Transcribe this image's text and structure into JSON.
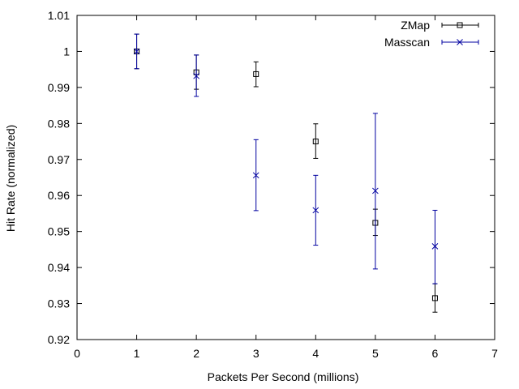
{
  "chart_data": {
    "type": "scatter",
    "xlabel": "Packets Per Second (millions)",
    "ylabel": "Hit Rate (normalized)",
    "xlim": [
      0,
      7
    ],
    "ylim": [
      0.92,
      1.01
    ],
    "xticks": [
      0,
      1,
      2,
      3,
      4,
      5,
      6,
      7
    ],
    "yticks": [
      0.92,
      0.93,
      0.94,
      0.95,
      0.96,
      0.97,
      0.98,
      0.99,
      1,
      1.01
    ],
    "xtick_labels": [
      "0",
      "1",
      "2",
      "3",
      "4",
      "5",
      "6",
      "7"
    ],
    "ytick_labels": [
      "0.92",
      "0.93",
      "0.94",
      "0.95",
      "0.96",
      "0.97",
      "0.98",
      "0.99",
      "1",
      "1.01"
    ],
    "grid": false,
    "legend_position": "top-right",
    "series": [
      {
        "name": "ZMap",
        "marker": "square",
        "color": "#000000",
        "points": [
          {
            "x": 1,
            "y": 1.0,
            "ylow": 0.9952,
            "yhigh": 1.0048
          },
          {
            "x": 2,
            "y": 0.9942,
            "ylow": 0.9895,
            "yhigh": 0.999
          },
          {
            "x": 3,
            "y": 0.9937,
            "ylow": 0.9902,
            "yhigh": 0.9971
          },
          {
            "x": 4,
            "y": 0.975,
            "ylow": 0.9703,
            "yhigh": 0.9799
          },
          {
            "x": 5,
            "y": 0.9524,
            "ylow": 0.9489,
            "yhigh": 0.9562
          },
          {
            "x": 6,
            "y": 0.9315,
            "ylow": 0.9276,
            "yhigh": 0.9355
          }
        ]
      },
      {
        "name": "Masscan",
        "marker": "x",
        "color": "#0000a0",
        "points": [
          {
            "x": 1,
            "y": 1.0,
            "ylow": 0.9952,
            "yhigh": 1.0048
          },
          {
            "x": 2,
            "y": 0.9932,
            "ylow": 0.9875,
            "yhigh": 0.999
          },
          {
            "x": 3,
            "y": 0.9656,
            "ylow": 0.9558,
            "yhigh": 0.9755
          },
          {
            "x": 4,
            "y": 0.9559,
            "ylow": 0.9462,
            "yhigh": 0.9656
          },
          {
            "x": 5,
            "y": 0.9613,
            "ylow": 0.9396,
            "yhigh": 0.9828
          },
          {
            "x": 6,
            "y": 0.9459,
            "ylow": 0.9355,
            "yhigh": 0.9559
          }
        ]
      }
    ]
  }
}
